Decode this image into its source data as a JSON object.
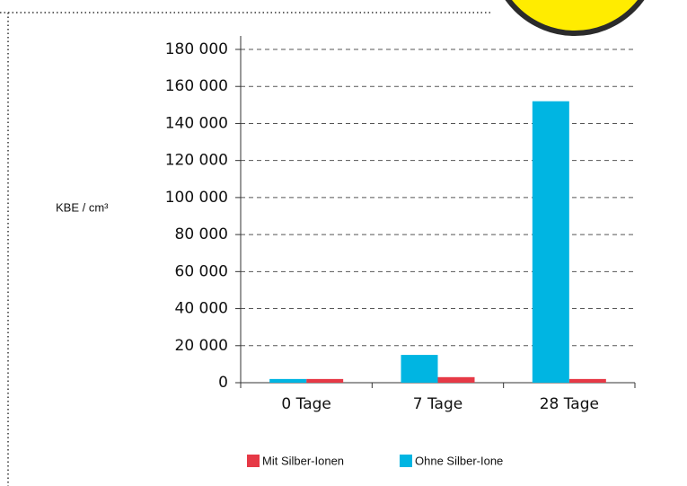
{
  "chart_data": {
    "type": "bar",
    "y_label": "KBE / cm³",
    "categories": [
      "0 Tage",
      "7 Tage",
      "28 Tage"
    ],
    "series": [
      {
        "name": "Mit Silber-Ionen",
        "color": "#e63946",
        "values": [
          2000,
          3000,
          2000
        ]
      },
      {
        "name": "Ohne Silber-Ione",
        "color": "#00b5e2",
        "values": [
          2000,
          15000,
          152000
        ]
      }
    ],
    "ylim": [
      0,
      180000
    ],
    "yticks": [
      0,
      {
        "value": 20000,
        "label": "20 000"
      },
      {
        "value": 40000,
        "label": "40 000"
      },
      {
        "value": 60000,
        "label": "60 000"
      },
      {
        "value": 80000,
        "label": "80 000"
      },
      {
        "value": 100000,
        "label": "100 000"
      },
      {
        "value": 120000,
        "label": "120 000"
      },
      {
        "value": 140000,
        "label": "140 000"
      },
      {
        "value": 160000,
        "label": "160 000"
      },
      {
        "value": 180000,
        "label": "180 000"
      }
    ],
    "grid": true
  }
}
